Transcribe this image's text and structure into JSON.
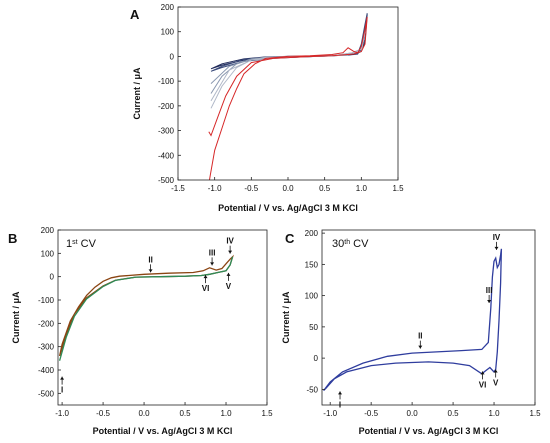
{
  "chart_data": [
    {
      "panel": "A",
      "type": "line",
      "xlabel": "Potential / V vs. Ag/AgCl 3 M KCl",
      "ylabel": "Current / μA",
      "xlim": [
        -1.5,
        1.5
      ],
      "ylim": [
        -500,
        200
      ],
      "xticks": [
        "-1.5",
        "-1.0",
        "-0.5",
        "0.0",
        "0.5",
        "1.0",
        "1.5"
      ],
      "yticks": [
        "200",
        "100",
        "0",
        "-100",
        "-200",
        "-300",
        "-400",
        "-500"
      ],
      "series": [
        {
          "color": "#1f2a5a",
          "x": [
            -1.05,
            -0.9,
            -0.6,
            -0.3,
            0.0,
            0.5,
            0.8,
            0.95,
            1.0,
            1.05,
            1.08,
            1.05,
            1.0,
            0.9,
            0.6,
            0.2,
            -0.2,
            -0.6,
            -0.9,
            -1.05
          ],
          "y": [
            -50,
            -30,
            -10,
            -2,
            0,
            2,
            5,
            10,
            40,
            120,
            170,
            60,
            20,
            8,
            2,
            -2,
            -6,
            -15,
            -35,
            -50
          ]
        },
        {
          "color": "#3a4a7a",
          "x": [
            -1.05,
            -0.9,
            -0.6,
            -0.3,
            0.0,
            0.5,
            0.8,
            0.95,
            1.0,
            1.05,
            1.08,
            1.05,
            1.0,
            0.9,
            0.6,
            0.2,
            -0.2,
            -0.6,
            -0.9,
            -1.05
          ],
          "y": [
            -60,
            -40,
            -12,
            -3,
            0,
            2,
            6,
            12,
            50,
            130,
            175,
            70,
            25,
            10,
            3,
            -2,
            -8,
            -20,
            -45,
            -60
          ]
        },
        {
          "color": "#8a98b0",
          "x": [
            -1.05,
            -0.9,
            -0.7,
            -0.5,
            -0.3,
            0.0,
            0.5,
            0.8,
            1.0,
            1.05,
            1.0,
            0.6,
            0.0,
            -0.5,
            -0.8,
            -1.05
          ],
          "y": [
            -150,
            -80,
            -30,
            -10,
            -3,
            0,
            2,
            5,
            30,
            100,
            20,
            2,
            -3,
            -12,
            -40,
            -110
          ]
        },
        {
          "color": "#b0b8c8",
          "x": [
            -1.05,
            -0.9,
            -0.7,
            -0.5,
            -0.3,
            0.0,
            0.5,
            0.8,
            1.0,
            1.05,
            1.0,
            0.6,
            0.0,
            -0.5,
            -0.8,
            -1.05
          ],
          "y": [
            -210,
            -120,
            -45,
            -15,
            -4,
            0,
            2,
            5,
            30,
            100,
            20,
            2,
            -3,
            -15,
            -55,
            -180
          ]
        },
        {
          "color": "#d62728",
          "x": [
            -1.07,
            -1.06,
            -1.0,
            -0.9,
            -0.8,
            -0.7,
            -0.6,
            -0.45,
            -0.3,
            0.0,
            0.3,
            0.6,
            0.75,
            0.82,
            0.9,
            0.95,
            1.0,
            1.05,
            1.08,
            1.05,
            1.0,
            0.9,
            0.6,
            0.2,
            -0.2,
            -0.5,
            -0.7,
            -0.85,
            -0.95,
            -1.05,
            -1.08
          ],
          "y": [
            -500,
            -480,
            -380,
            -290,
            -200,
            -130,
            -70,
            -30,
            -8,
            0,
            3,
            8,
            15,
            35,
            20,
            15,
            40,
            110,
            160,
            50,
            20,
            10,
            3,
            -2,
            -8,
            -25,
            -80,
            -160,
            -240,
            -320,
            -305
          ]
        }
      ]
    },
    {
      "panel": "B",
      "type": "line",
      "title": "1st CV",
      "title_main": "1",
      "title_sup": "st",
      "title_rest": " CV",
      "xlabel": "Potential / V vs. Ag/AgCl 3 M KCl",
      "ylabel": "Current / μA",
      "xlim": [
        -1.05,
        1.5
      ],
      "ylim": [
        -550,
        200
      ],
      "xticks": [
        "-1.0",
        "-0.5",
        "0.0",
        "0.5",
        "1.0",
        "1.5"
      ],
      "yticks": [
        "200",
        "100",
        "0",
        "-100",
        "-200",
        "-300",
        "-400",
        "-500"
      ],
      "annotations": [
        {
          "label": "I",
          "x": -1.0,
          "y": -420,
          "dir": "up"
        },
        {
          "label": "II",
          "x": 0.08,
          "y": 10,
          "dir": "down"
        },
        {
          "label": "III",
          "x": 0.83,
          "y": 40,
          "dir": "down"
        },
        {
          "label": "IV",
          "x": 1.05,
          "y": 90,
          "dir": "down"
        },
        {
          "label": "V",
          "x": 1.03,
          "y": 25,
          "dir": "up"
        },
        {
          "label": "VI",
          "x": 0.75,
          "y": 15,
          "dir": "up"
        }
      ],
      "series": [
        {
          "color": "#8b4513",
          "x": [
            -1.03,
            -1.0,
            -0.9,
            -0.8,
            -0.7,
            -0.6,
            -0.5,
            -0.4,
            -0.3,
            0.0,
            0.3,
            0.6,
            0.72,
            0.8,
            0.88,
            0.95,
            1.0,
            1.05,
            1.08,
            1.05,
            1.0,
            0.9,
            0.8,
            0.7,
            0.5,
            0.2,
            -0.1,
            -0.35,
            -0.5,
            -0.7,
            -0.85,
            -0.95,
            -1.03
          ],
          "y": [
            -340,
            -290,
            -190,
            -130,
            -80,
            -45,
            -20,
            -5,
            2,
            10,
            15,
            18,
            25,
            38,
            28,
            35,
            55,
            75,
            85,
            50,
            25,
            18,
            10,
            5,
            2,
            0,
            -2,
            -15,
            -40,
            -90,
            -160,
            -250,
            -340
          ]
        },
        {
          "color": "#2e8b57",
          "x": [
            -1.03,
            -0.95,
            -0.85,
            -0.7,
            -0.5,
            -0.35,
            -0.1,
            0.2,
            0.5,
            0.7,
            0.8,
            0.9,
            1.0,
            1.05,
            1.08
          ],
          "y": [
            -360,
            -260,
            -170,
            -95,
            -42,
            -16,
            -2,
            0,
            2,
            5,
            10,
            18,
            25,
            50,
            85
          ]
        }
      ]
    },
    {
      "panel": "C",
      "type": "line",
      "title": "30th CV",
      "title_main": "30",
      "title_sup": "th",
      "title_rest": " CV",
      "xlabel": "Potential / V vs. Ag/AgCl 3 M KCl",
      "ylabel": "Current / μA",
      "xlim": [
        -1.1,
        1.5
      ],
      "ylim": [
        -75,
        205
      ],
      "xticks": [
        "-1.0",
        "-0.5",
        "0.0",
        "0.5",
        "1.0",
        "1.5"
      ],
      "yticks": [
        "200",
        "150",
        "100",
        "50",
        "0",
        "-50"
      ],
      "annotations": [
        {
          "label": "I",
          "x": -0.88,
          "y": -50,
          "dir": "up"
        },
        {
          "label": "II",
          "x": 0.1,
          "y": 12,
          "dir": "down"
        },
        {
          "label": "III",
          "x": 0.94,
          "y": 85,
          "dir": "down"
        },
        {
          "label": "IV",
          "x": 1.03,
          "y": 170,
          "dir": "down"
        },
        {
          "label": "V",
          "x": 1.02,
          "y": -15,
          "dir": "up"
        },
        {
          "label": "VI",
          "x": 0.86,
          "y": -18,
          "dir": "up"
        }
      ],
      "series": [
        {
          "color": "#2f3d9e",
          "x": [
            -1.08,
            -1.0,
            -0.85,
            -0.6,
            -0.3,
            0.0,
            0.3,
            0.6,
            0.85,
            0.93,
            0.96,
            0.98,
            1.0,
            1.02,
            1.04,
            1.06,
            1.08,
            1.09,
            1.08,
            1.06,
            1.04,
            1.02,
            1.0,
            0.95,
            0.9,
            0.85,
            0.7,
            0.5,
            0.2,
            -0.2,
            -0.5,
            -0.8,
            -0.95,
            -1.05,
            -1.08
          ],
          "y": [
            -52,
            -38,
            -22,
            -8,
            3,
            8,
            10,
            12,
            14,
            25,
            80,
            130,
            155,
            160,
            145,
            150,
            165,
            175,
            120,
            60,
            10,
            -18,
            -22,
            -15,
            -20,
            -25,
            -12,
            -8,
            -6,
            -8,
            -12,
            -22,
            -33,
            -48,
            -52
          ]
        }
      ]
    }
  ]
}
